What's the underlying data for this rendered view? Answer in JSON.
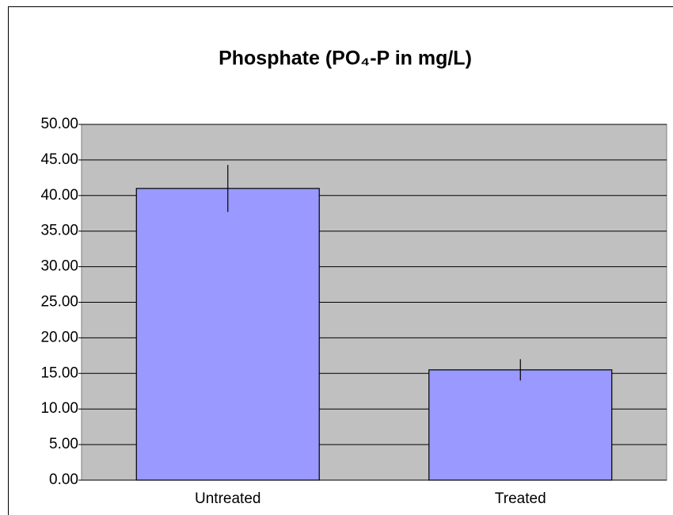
{
  "chart_data": {
    "type": "bar",
    "title": "Phosphate (PO₄-P in mg/L)",
    "categories": [
      "Untreated",
      "Treated"
    ],
    "values": [
      41.0,
      15.5
    ],
    "errors": [
      3.3,
      1.5
    ],
    "color": "#9999ff",
    "ylim": [
      0,
      50
    ],
    "yticks": [
      {
        "value": 0,
        "label": "0.00"
      },
      {
        "value": 5,
        "label": "5.00"
      },
      {
        "value": 10,
        "label": "10.00"
      },
      {
        "value": 15,
        "label": "15.00"
      },
      {
        "value": 20,
        "label": "20.00"
      },
      {
        "value": 25,
        "label": "25.00"
      },
      {
        "value": 30,
        "label": "30.00"
      },
      {
        "value": 35,
        "label": "35.00"
      },
      {
        "value": 40,
        "label": "40.00"
      },
      {
        "value": 45,
        "label": "45.00"
      },
      {
        "value": 50,
        "label": "50.00"
      }
    ],
    "grid": true
  }
}
